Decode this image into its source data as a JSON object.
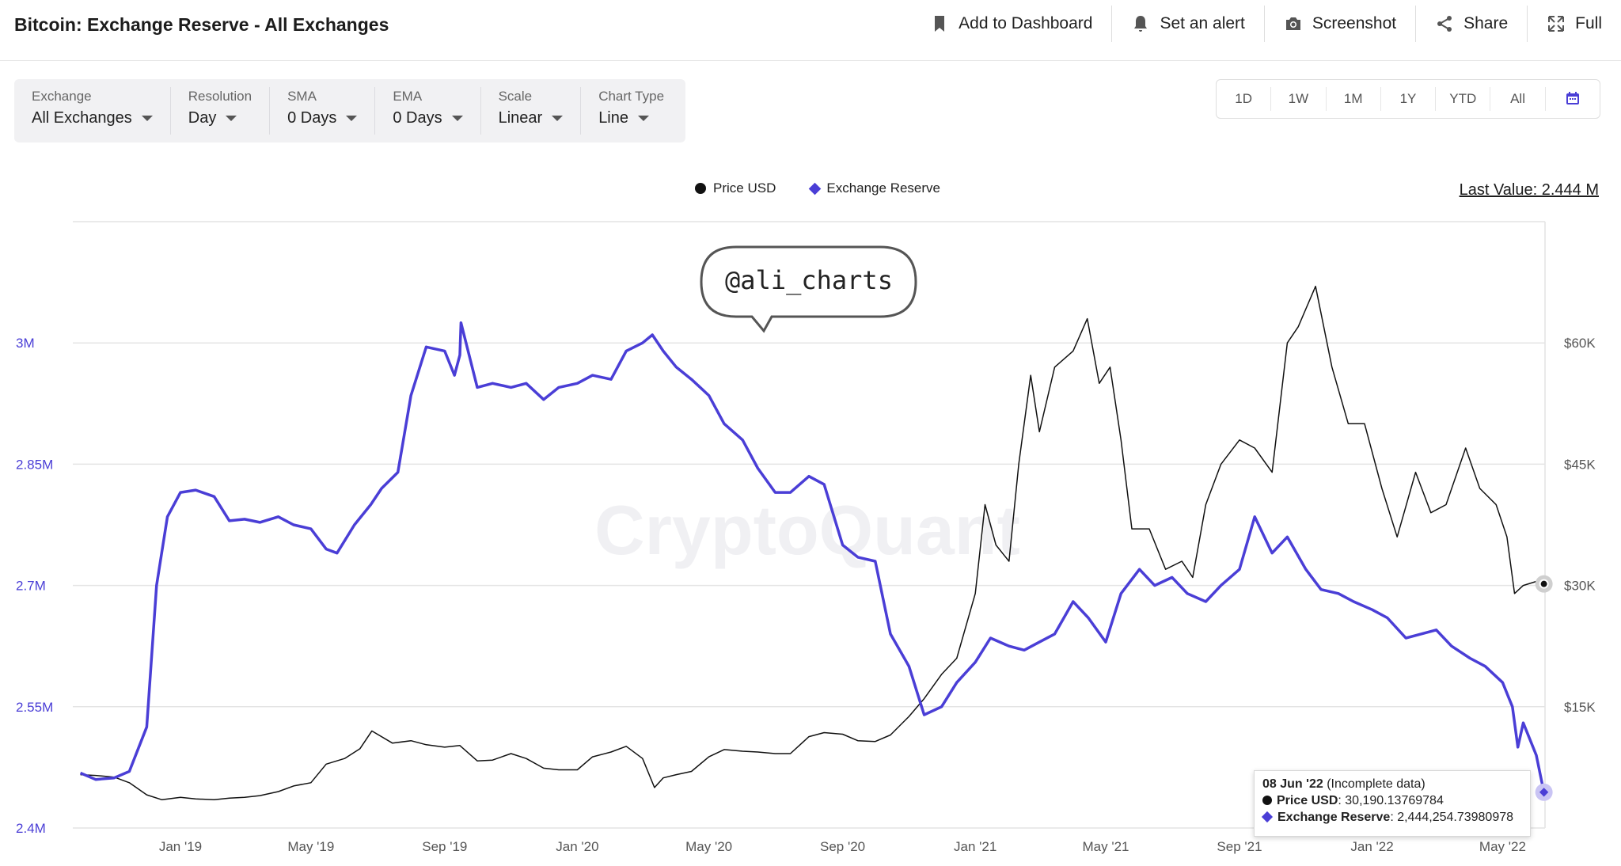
{
  "header": {
    "title": "Bitcoin: Exchange Reserve - All Exchanges",
    "actions": [
      {
        "label": "Add to Dashboard",
        "icon": "bookmark-icon"
      },
      {
        "label": "Set an alert",
        "icon": "bell-icon"
      },
      {
        "label": "Screenshot",
        "icon": "camera-icon"
      },
      {
        "label": "Share",
        "icon": "share-icon"
      },
      {
        "label": "Full",
        "icon": "expand-icon"
      }
    ]
  },
  "controls": [
    {
      "label": "Exchange",
      "value": "All Exchanges"
    },
    {
      "label": "Resolution",
      "value": "Day"
    },
    {
      "label": "SMA",
      "value": "0 Days"
    },
    {
      "label": "EMA",
      "value": "0 Days"
    },
    {
      "label": "Scale",
      "value": "Linear"
    },
    {
      "label": "Chart Type",
      "value": "Line"
    }
  ],
  "ranges": [
    "1D",
    "1W",
    "1M",
    "1Y",
    "YTD",
    "All"
  ],
  "last_value": "Last Value: 2.444 M",
  "watermark": "CryptoQuant",
  "annotation": "@ali_charts",
  "tooltip": {
    "date": "08 Jun '22",
    "note": "(Incomplete data)",
    "price_label": "Price USD",
    "price_value": "30,190.13769784",
    "reserve_label": "Exchange Reserve",
    "reserve_value": "2,444,254.73980978"
  },
  "colors": {
    "reserve": "#4a3ed6",
    "price": "#111111",
    "grid": "#e4e4e4",
    "left_axis": "#4a3ed6"
  },
  "chart_data": {
    "type": "line",
    "legend": [
      "Price USD",
      "Exchange Reserve"
    ],
    "x_tick_labels": [
      "Jan '19",
      "May '19",
      "Sep '19",
      "Jan '20",
      "May '20",
      "Sep '20",
      "Jan '21",
      "May '21",
      "Sep '21",
      "Jan '22",
      "May '22"
    ],
    "left_axis": {
      "ticks": [
        "2.4M",
        "2.55M",
        "2.7M",
        "2.85M",
        "3M"
      ],
      "ylim": [
        2400000,
        3150000
      ]
    },
    "right_axis": {
      "ticks": [
        "$15K",
        "$30K",
        "$45K",
        "$60K"
      ],
      "ylim": [
        0,
        75000
      ]
    },
    "series": [
      {
        "name": "Exchange Reserve",
        "axis": "left",
        "x": [
          "2018-10-01",
          "2018-10-15",
          "2018-11-01",
          "2018-11-15",
          "2018-12-01",
          "2018-12-10",
          "2018-12-20",
          "2019-01-01",
          "2019-01-15",
          "2019-02-01",
          "2019-02-15",
          "2019-03-01",
          "2019-03-15",
          "2019-04-01",
          "2019-04-15",
          "2019-05-01",
          "2019-05-15",
          "2019-05-25",
          "2019-06-10",
          "2019-06-25",
          "2019-07-05",
          "2019-07-20",
          "2019-08-01",
          "2019-08-15",
          "2019-09-01",
          "2019-09-10",
          "2019-09-15",
          "2019-09-16",
          "2019-10-01",
          "2019-10-15",
          "2019-11-01",
          "2019-11-15",
          "2019-12-01",
          "2019-12-15",
          "2020-01-01",
          "2020-01-15",
          "2020-02-01",
          "2020-02-15",
          "2020-03-01",
          "2020-03-10",
          "2020-03-20",
          "2020-04-01",
          "2020-04-15",
          "2020-05-01",
          "2020-05-15",
          "2020-06-01",
          "2020-06-15",
          "2020-07-01",
          "2020-07-15",
          "2020-08-01",
          "2020-08-15",
          "2020-09-01",
          "2020-09-15",
          "2020-10-01",
          "2020-10-15",
          "2020-11-01",
          "2020-11-15",
          "2020-12-01",
          "2020-12-15",
          "2021-01-01",
          "2021-01-15",
          "2021-02-01",
          "2021-02-15",
          "2021-03-01",
          "2021-03-15",
          "2021-04-01",
          "2021-04-15",
          "2021-05-01",
          "2021-05-15",
          "2021-06-01",
          "2021-06-15",
          "2021-07-01",
          "2021-07-15",
          "2021-08-01",
          "2021-08-15",
          "2021-09-01",
          "2021-09-15",
          "2021-10-01",
          "2021-10-15",
          "2021-11-01",
          "2021-11-15",
          "2021-12-01",
          "2021-12-15",
          "2022-01-01",
          "2022-01-15",
          "2022-02-01",
          "2022-02-15",
          "2022-03-01",
          "2022-03-15",
          "2022-04-01",
          "2022-04-15",
          "2022-05-01",
          "2022-05-10",
          "2022-05-15",
          "2022-05-20",
          "2022-06-01",
          "2022-06-08"
        ],
        "values": [
          2468000,
          2460000,
          2462000,
          2470000,
          2525000,
          2700000,
          2785000,
          2815000,
          2818000,
          2810000,
          2780000,
          2782000,
          2778000,
          2785000,
          2775000,
          2770000,
          2745000,
          2740000,
          2775000,
          2800000,
          2820000,
          2840000,
          2935000,
          2995000,
          2990000,
          2960000,
          2985000,
          3025000,
          2945000,
          2950000,
          2945000,
          2950000,
          2930000,
          2945000,
          2950000,
          2960000,
          2955000,
          2990000,
          3000000,
          3010000,
          2990000,
          2970000,
          2955000,
          2935000,
          2900000,
          2880000,
          2845000,
          2815000,
          2815000,
          2835000,
          2825000,
          2750000,
          2735000,
          2730000,
          2640000,
          2600000,
          2540000,
          2550000,
          2580000,
          2605000,
          2635000,
          2625000,
          2620000,
          2630000,
          2640000,
          2680000,
          2660000,
          2630000,
          2690000,
          2720000,
          2700000,
          2710000,
          2690000,
          2680000,
          2700000,
          2720000,
          2785000,
          2740000,
          2760000,
          2720000,
          2695000,
          2690000,
          2680000,
          2670000,
          2660000,
          2635000,
          2640000,
          2645000,
          2625000,
          2610000,
          2600000,
          2580000,
          2550000,
          2500000,
          2530000,
          2490000,
          2444254.74
        ]
      },
      {
        "name": "Price USD",
        "axis": "right",
        "x": [
          "2018-10-01",
          "2018-10-15",
          "2018-11-01",
          "2018-11-15",
          "2018-12-01",
          "2018-12-15",
          "2019-01-01",
          "2019-01-15",
          "2019-02-01",
          "2019-02-15",
          "2019-03-01",
          "2019-03-15",
          "2019-04-01",
          "2019-04-15",
          "2019-05-01",
          "2019-05-15",
          "2019-06-01",
          "2019-06-15",
          "2019-06-26",
          "2019-07-15",
          "2019-08-01",
          "2019-08-15",
          "2019-09-01",
          "2019-09-15",
          "2019-10-01",
          "2019-10-15",
          "2019-11-01",
          "2019-11-15",
          "2019-12-01",
          "2019-12-15",
          "2020-01-01",
          "2020-01-15",
          "2020-02-01",
          "2020-02-15",
          "2020-03-01",
          "2020-03-12",
          "2020-03-20",
          "2020-04-01",
          "2020-04-15",
          "2020-05-01",
          "2020-05-15",
          "2020-06-01",
          "2020-06-15",
          "2020-07-01",
          "2020-07-15",
          "2020-08-01",
          "2020-08-15",
          "2020-09-01",
          "2020-09-15",
          "2020-10-01",
          "2020-10-15",
          "2020-11-01",
          "2020-11-15",
          "2020-12-01",
          "2020-12-15",
          "2021-01-01",
          "2021-01-10",
          "2021-01-20",
          "2021-02-01",
          "2021-02-10",
          "2021-02-21",
          "2021-03-01",
          "2021-03-15",
          "2021-04-01",
          "2021-04-14",
          "2021-04-25",
          "2021-05-05",
          "2021-05-15",
          "2021-05-25",
          "2021-06-10",
          "2021-06-25",
          "2021-07-10",
          "2021-07-20",
          "2021-08-01",
          "2021-08-15",
          "2021-09-01",
          "2021-09-15",
          "2021-10-01",
          "2021-10-15",
          "2021-10-25",
          "2021-11-10",
          "2021-11-25",
          "2021-12-10",
          "2021-12-25",
          "2022-01-10",
          "2022-01-24",
          "2022-02-10",
          "2022-02-24",
          "2022-03-10",
          "2022-03-28",
          "2022-04-10",
          "2022-04-25",
          "2022-05-05",
          "2022-05-12",
          "2022-05-20",
          "2022-06-01",
          "2022-06-08"
        ],
        "values": [
          6600,
          6500,
          6300,
          5600,
          4100,
          3500,
          3800,
          3600,
          3500,
          3700,
          3800,
          4000,
          4500,
          5200,
          5600,
          7900,
          8600,
          9800,
          12000,
          10500,
          10800,
          10300,
          10000,
          10200,
          8300,
          8400,
          9200,
          8600,
          7400,
          7200,
          7200,
          8800,
          9400,
          10100,
          8600,
          5000,
          6200,
          6600,
          7000,
          8800,
          9700,
          9500,
          9400,
          9200,
          9200,
          11300,
          11800,
          11600,
          10800,
          10700,
          11500,
          13800,
          16000,
          19000,
          21000,
          29000,
          40000,
          35000,
          33000,
          45000,
          56000,
          49000,
          57000,
          59000,
          63000,
          55000,
          57000,
          48000,
          37000,
          37000,
          32000,
          33000,
          31000,
          40000,
          45000,
          48000,
          47000,
          44000,
          60000,
          62000,
          67000,
          57000,
          50000,
          50000,
          42000,
          36000,
          44000,
          39000,
          40000,
          47000,
          42000,
          40000,
          36000,
          29000,
          30000,
          30500,
          30190.14
        ]
      }
    ]
  }
}
